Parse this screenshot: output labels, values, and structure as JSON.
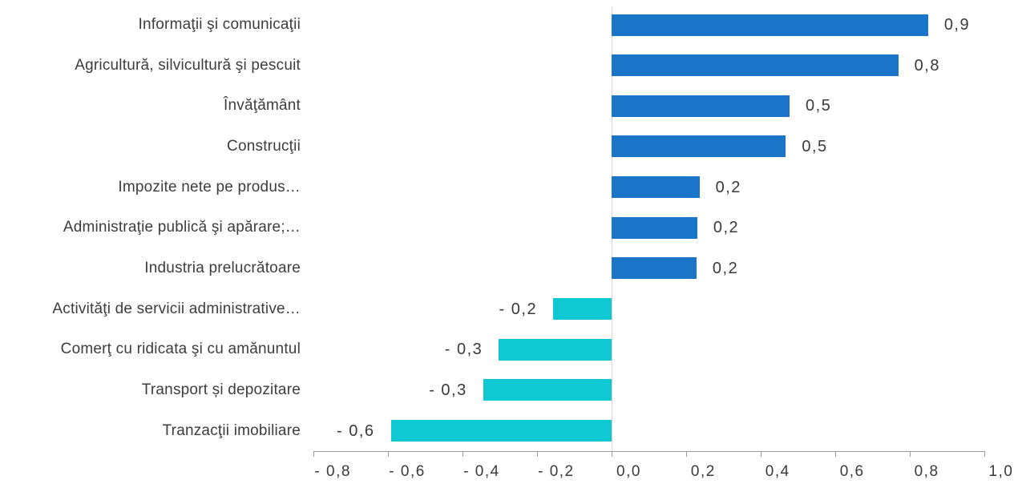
{
  "chart_data": {
    "type": "bar",
    "orientation": "horizontal",
    "title": "",
    "xlabel": "",
    "ylabel": "",
    "xlim": [
      -0.8,
      1.0
    ],
    "grid": "zero-line-only",
    "legend": "none",
    "decimal_separator": ",",
    "positive_color": "#1A74C8",
    "negative_color": "#10C8D1",
    "categories": [
      "Informaţii şi comunicaţii",
      "Agricultură, silvicultură şi pescuit",
      "Învăţământ",
      "Construcţii",
      "Impozite nete pe produs…",
      "Administraţie publică şi apărare;…",
      "Industria prelucrătoare",
      "Activităţi de servicii administrative…",
      "Comerţ cu ridicata şi cu amănuntul",
      "Transport și depozitare",
      "Tranzacţii imobiliare"
    ],
    "values": [
      0.9,
      0.8,
      0.5,
      0.5,
      0.2,
      0.2,
      0.2,
      -0.2,
      -0.3,
      -0.3,
      -0.6
    ],
    "value_labels": [
      "0,9",
      "0,8",
      "0,5",
      "0,5",
      "0,2",
      "0,2",
      "0,2",
      "- 0,2",
      "- 0,3",
      "- 0,3",
      "- 0,6"
    ],
    "bar_extents": [
      0.85,
      0.77,
      0.478,
      0.468,
      0.236,
      0.23,
      0.228,
      -0.157,
      -0.303,
      -0.345,
      -0.593
    ],
    "x_ticks": [
      {
        "value": -0.8,
        "label": "- 0,8"
      },
      {
        "value": -0.6,
        "label": "- 0,6"
      },
      {
        "value": -0.4,
        "label": "- 0,4"
      },
      {
        "value": -0.2,
        "label": "- 0,2"
      },
      {
        "value": 0.0,
        "label": "0,0"
      },
      {
        "value": 0.2,
        "label": "0,2"
      },
      {
        "value": 0.4,
        "label": "0,4"
      },
      {
        "value": 0.6,
        "label": "0,6"
      },
      {
        "value": 0.8,
        "label": "0,8"
      },
      {
        "value": 1.0,
        "label": "1,0"
      }
    ]
  }
}
